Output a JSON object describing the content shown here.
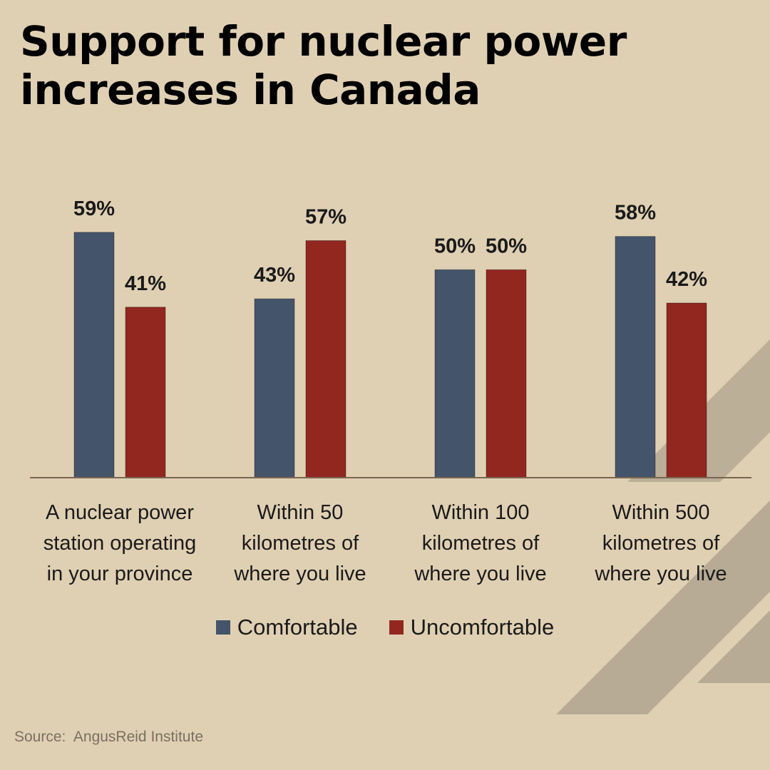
{
  "header": {
    "title": "Support for nuclear power increases in Canada"
  },
  "colors": {
    "background": "#e0d0b3",
    "comfortable": "#44546a",
    "uncomfortable": "#922720",
    "axis": "#7a6650",
    "decoration": "#b7ab95"
  },
  "chart_data": {
    "type": "bar",
    "categories": [
      [
        "A nuclear power",
        "station operating",
        "in your province"
      ],
      [
        "Within 50",
        "kilometres of",
        "where you live"
      ],
      [
        "Within 100",
        "kilometres of",
        "where you live"
      ],
      [
        "Within 500",
        "kilometres of",
        "where you live"
      ]
    ],
    "series": [
      {
        "name": "Comfortable",
        "values": [
          59,
          43,
          50,
          58
        ],
        "labels": [
          "59%",
          "43%",
          "50%",
          "58%"
        ],
        "color": "#44546a"
      },
      {
        "name": "Uncomfortable",
        "values": [
          41,
          57,
          50,
          42
        ],
        "labels": [
          "41%",
          "57%",
          "50%",
          "42%"
        ],
        "color": "#922720"
      }
    ],
    "ylim": [
      0,
      60
    ],
    "legend": "bottom",
    "grid": false
  },
  "footer": {
    "source": "Source:  AngusReid Institute"
  }
}
